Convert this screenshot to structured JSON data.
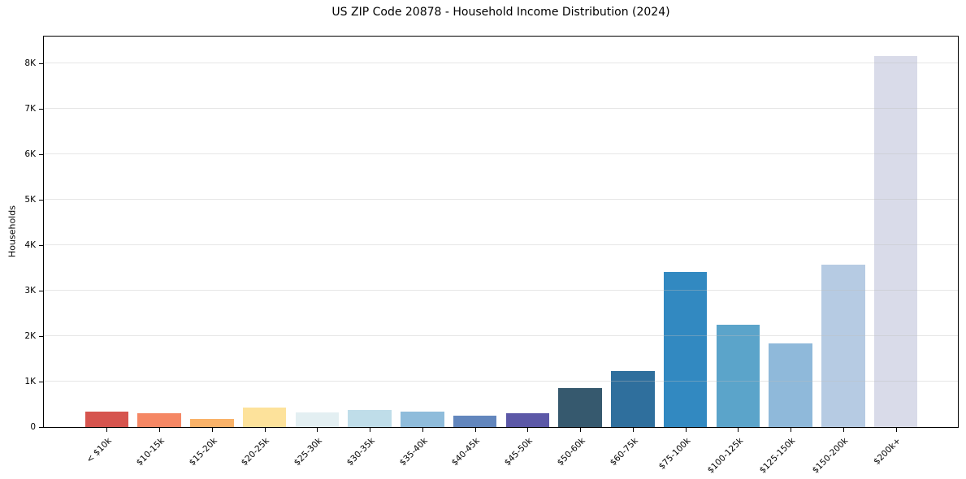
{
  "chart_data": {
    "type": "bar",
    "title": "US ZIP Code 20878 - Household Income Distribution (2024)",
    "xlabel": "",
    "ylabel": "Households",
    "categories": [
      "< $10k",
      "$10-15k",
      "$15-20k",
      "$20-25k",
      "$25-30k",
      "$30-35k",
      "$35-40k",
      "$40-45k",
      "$45-50k",
      "$50-60k",
      "$60-75k",
      "$75-100k",
      "$100-125k",
      "$125-150k",
      "$150-200k",
      "$200k+"
    ],
    "values": [
      340,
      305,
      170,
      430,
      315,
      370,
      340,
      255,
      300,
      860,
      1230,
      3420,
      2250,
      1840,
      3580,
      8160
    ],
    "bar_colors": [
      "#d6544e",
      "#f58764",
      "#f9b269",
      "#fde29b",
      "#e3eff2",
      "#bfdde9",
      "#8fbcdb",
      "#6286bd",
      "#5c58a7",
      "#36596e",
      "#2f6f9d",
      "#3289c1",
      "#5ba4ca",
      "#8fb9da",
      "#b6cbe3",
      "#d9dbe9"
    ],
    "ylim": [
      0,
      8590
    ],
    "ytick_values": [
      0,
      1000,
      2000,
      3000,
      4000,
      5000,
      6000,
      7000,
      8000
    ],
    "ytick_labels": [
      "0",
      "1K",
      "2K",
      "3K",
      "4K",
      "5K",
      "6K",
      "7K",
      "8K"
    ],
    "grid": "horizontal-y",
    "legend": "none",
    "gridline_color": "rgba(190,190,190,0.38)",
    "spine_color": "#000000",
    "background_color": "#ffffff"
  }
}
